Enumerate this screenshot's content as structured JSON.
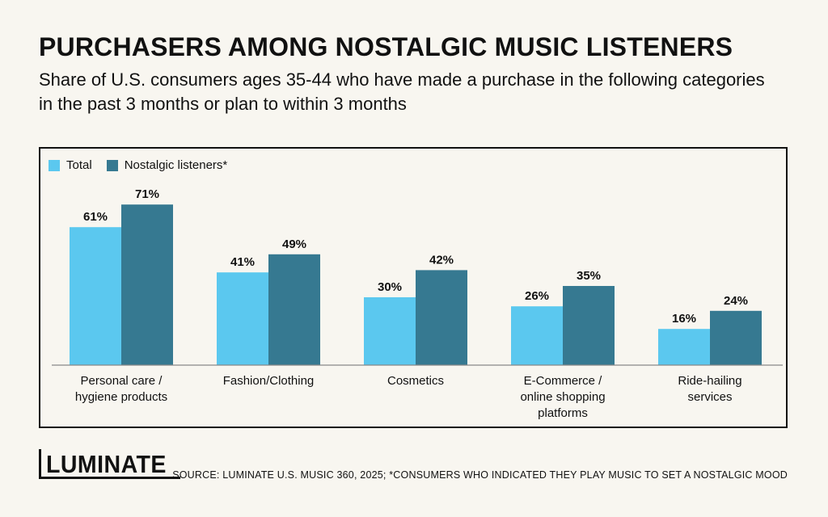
{
  "header": {
    "title": "PURCHASERS AMONG NOSTALGIC MUSIC LISTENERS",
    "subtitle": "Share of U.S. consumers ages 35-44 who have made a purchase in the following categories in the past 3 months or plan to within 3 months"
  },
  "chart_data": {
    "type": "bar",
    "title": "",
    "categories": [
      [
        "Personal care /",
        "hygiene products"
      ],
      [
        "Fashion/Clothing"
      ],
      [
        "Cosmetics"
      ],
      [
        "E-Commerce /",
        "online shopping",
        "platforms"
      ],
      [
        "Ride-hailing",
        "services"
      ]
    ],
    "series": [
      {
        "name": "Total",
        "color": "#5bc8ef",
        "values": [
          61,
          41,
          30,
          26,
          16
        ],
        "labels": [
          "61%",
          "41%",
          "30%",
          "26%",
          "16%"
        ]
      },
      {
        "name": "Nostalgic listeners*",
        "color": "#367991",
        "values": [
          71,
          49,
          42,
          35,
          24
        ],
        "labels": [
          "71%",
          "49%",
          "42%",
          "35%",
          "24%"
        ]
      }
    ],
    "xlabel": "",
    "ylabel": "",
    "ylim": [
      0,
      100
    ],
    "grid": false,
    "legend_position": "top-left"
  },
  "footer": {
    "brand": "LUMINATE",
    "source": "SOURCE: LUMINATE U.S. MUSIC 360, 2025; *CONSUMERS WHO INDICATED THEY PLAY MUSIC TO SET A NOSTALGIC MOOD"
  }
}
